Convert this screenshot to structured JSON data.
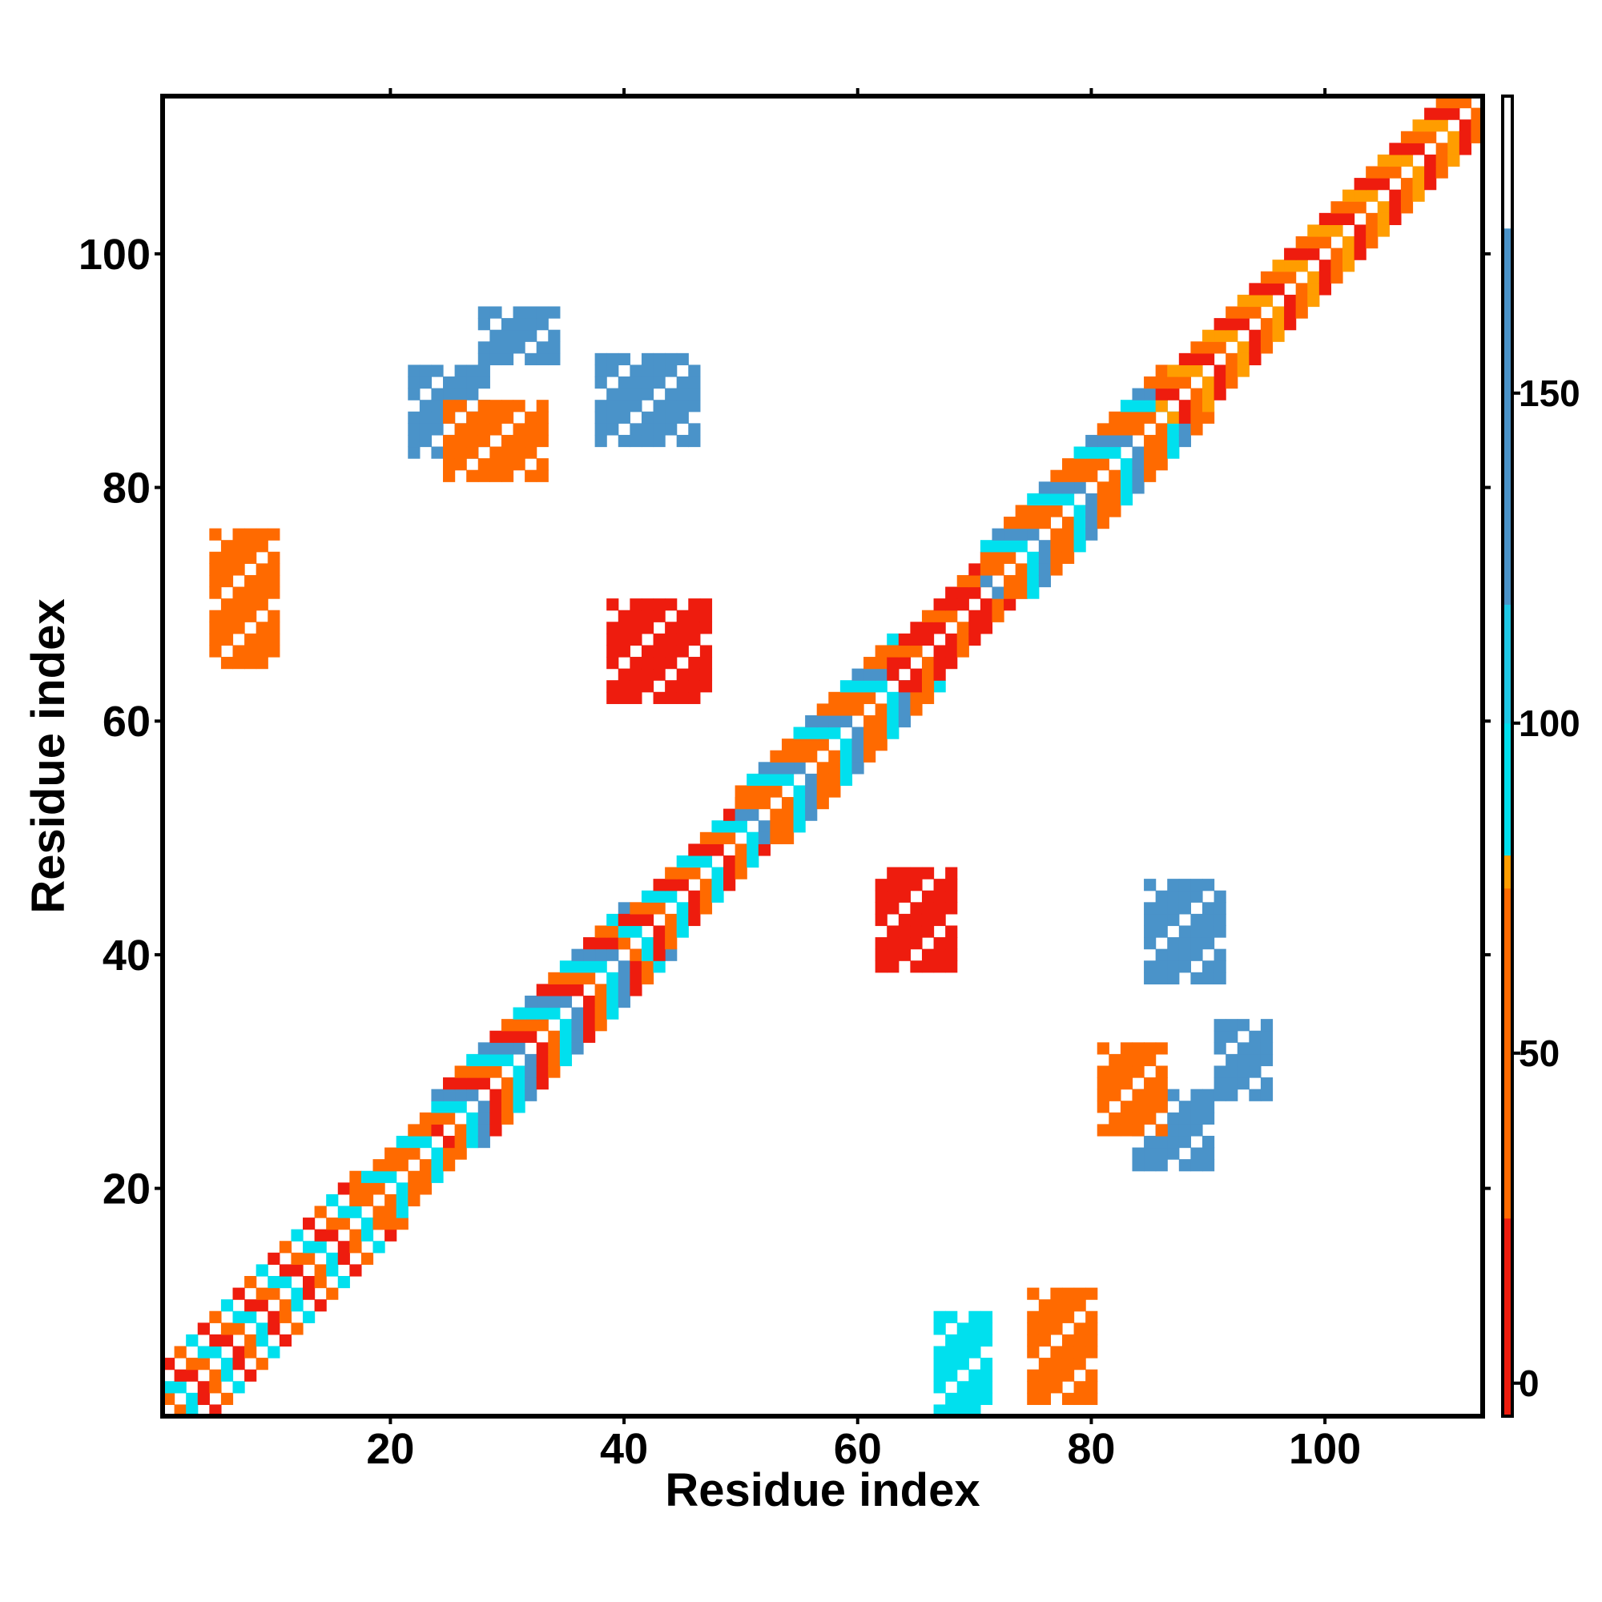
{
  "chart_data": {
    "type": "heatmap",
    "title": "",
    "xlabel": "Residue index",
    "ylabel": "Residue index",
    "xlim": [
      0.5,
      113.5
    ],
    "ylim": [
      0.5,
      113.5
    ],
    "xticks": [
      20,
      40,
      60,
      80,
      100
    ],
    "yticks": [
      20,
      40,
      60,
      80,
      100
    ],
    "colorbar": {
      "ticks": [
        0,
        50,
        100,
        150
      ],
      "range": [
        -5,
        195
      ],
      "bands": [
        {
          "from": -5,
          "to": 25,
          "color": "#ee1c0e"
        },
        {
          "from": 25,
          "to": 75,
          "color": "#ff6a00"
        },
        {
          "from": 75,
          "to": 80,
          "color": "#ff9d00"
        },
        {
          "from": 80,
          "to": 100,
          "color": "#00e0ee"
        },
        {
          "from": 100,
          "to": 118,
          "color": "#1ec8e6"
        },
        {
          "from": 118,
          "to": 175,
          "color": "#4a93c9"
        },
        {
          "from": 175,
          "to": 195,
          "color": "#ffffff"
        }
      ]
    },
    "diagonal_helix_segments": [
      [
        1,
        20
      ],
      [
        19,
        38
      ],
      [
        36,
        56
      ],
      [
        55,
        65
      ],
      [
        64,
        78
      ],
      [
        78,
        113
      ]
    ],
    "cells": [
      {
        "from": [
          1,
          1
        ],
        "to": [
          17,
          17
        ],
        "offsets": [
          1,
          2,
          4
        ],
        "values": [
          20,
          55,
          95
        ]
      },
      {
        "from": [
          17,
          17
        ],
        "to": [
          24,
          24
        ],
        "offsets": [
          1,
          2,
          3
        ],
        "values": [
          55,
          60,
          90
        ]
      },
      {
        "from": [
          24,
          24
        ],
        "to": [
          40,
          40
        ],
        "offsets": [
          1,
          2,
          3,
          4
        ],
        "values": [
          10,
          55,
          90,
          130
        ]
      },
      {
        "from": [
          40,
          40
        ],
        "to": [
          50,
          50
        ],
        "offsets": [
          1,
          2,
          3
        ],
        "values": [
          20,
          55,
          95
        ]
      },
      {
        "from": [
          50,
          50
        ],
        "to": [
          63,
          63
        ],
        "offsets": [
          1,
          2,
          3,
          4
        ],
        "values": [
          55,
          60,
          95,
          130
        ]
      },
      {
        "from": [
          63,
          63
        ],
        "to": [
          71,
          71
        ],
        "offsets": [
          1,
          2,
          3
        ],
        "values": [
          10,
          15,
          55
        ]
      },
      {
        "from": [
          71,
          71
        ],
        "to": [
          86,
          86
        ],
        "offsets": [
          1,
          2,
          3,
          4
        ],
        "values": [
          55,
          60,
          95,
          130
        ]
      },
      {
        "from": [
          86,
          86
        ],
        "to": [
          113,
          113
        ],
        "offsets": [
          1,
          2,
          3
        ],
        "values": [
          15,
          55,
          75
        ]
      }
    ],
    "contact_blocks": [
      {
        "x": [
          62,
          68
        ],
        "y": [
          39,
          47
        ],
        "value": 15
      },
      {
        "x": [
          85,
          91
        ],
        "y": [
          38,
          46
        ],
        "value": 150
      },
      {
        "x": [
          84,
          90
        ],
        "y": [
          22,
          28
        ],
        "value": 140
      },
      {
        "x": [
          81,
          86
        ],
        "y": [
          25,
          32
        ],
        "value": 60
      },
      {
        "x": [
          91,
          95
        ],
        "y": [
          28,
          34
        ],
        "value": 140
      },
      {
        "x": [
          39,
          47
        ],
        "y": [
          62,
          70
        ],
        "value": 15
      },
      {
        "x": [
          38,
          46
        ],
        "y": [
          84,
          91
        ],
        "value": 150
      },
      {
        "x": [
          22,
          28
        ],
        "y": [
          83,
          90
        ],
        "value": 140
      },
      {
        "x": [
          25,
          33
        ],
        "y": [
          81,
          87
        ],
        "value": 60
      },
      {
        "x": [
          28,
          34
        ],
        "y": [
          91,
          95
        ],
        "value": 140
      },
      {
        "x": [
          5,
          10
        ],
        "y": [
          65,
          76
        ],
        "value": 70
      },
      {
        "x": [
          75,
          80
        ],
        "y": [
          2,
          11
        ],
        "value": 70
      },
      {
        "x": [
          67,
          71
        ],
        "y": [
          1,
          9
        ],
        "value": 90
      }
    ]
  }
}
